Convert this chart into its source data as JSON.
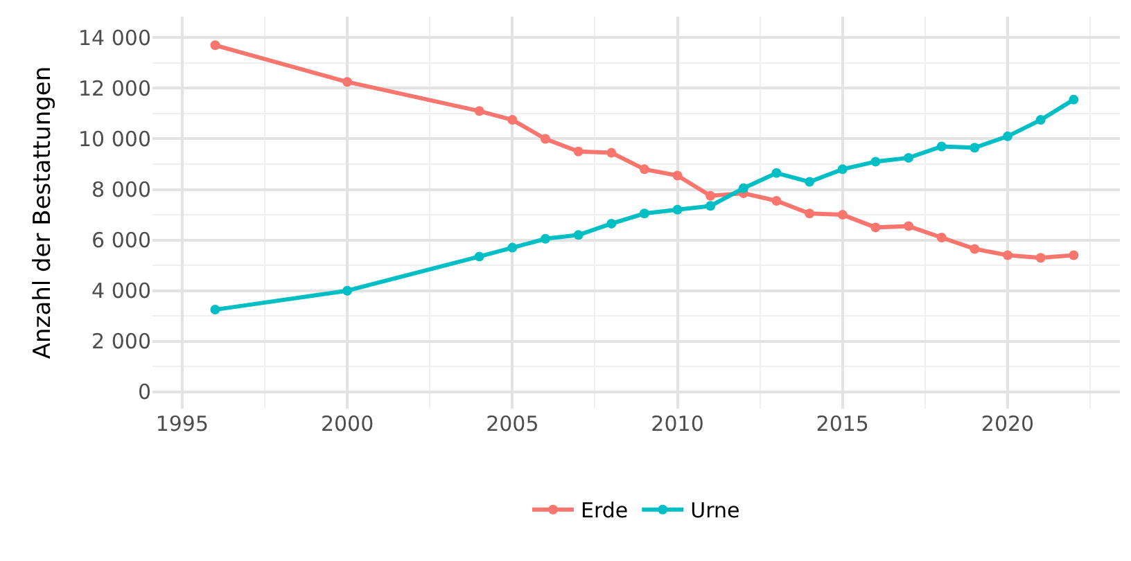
{
  "chart_data": {
    "type": "line",
    "ylabel": "Anzahl der Bestattungen",
    "x": [
      1996,
      2000,
      2004,
      2005,
      2006,
      2007,
      2008,
      2009,
      2010,
      2011,
      2012,
      2013,
      2014,
      2015,
      2016,
      2017,
      2018,
      2019,
      2020,
      2021,
      2022
    ],
    "series": [
      {
        "name": "Erde",
        "color": "#f8766d",
        "values": [
          13700,
          12250,
          11100,
          10750,
          10000,
          9500,
          9450,
          8800,
          8550,
          7750,
          7850,
          7550,
          7050,
          7000,
          6500,
          6550,
          6100,
          5650,
          5400,
          5300,
          5400
        ]
      },
      {
        "name": "Urne",
        "color": "#00bfc4",
        "values": [
          3250,
          4000,
          5350,
          5700,
          6050,
          6200,
          6650,
          7050,
          7200,
          7350,
          8050,
          8650,
          8300,
          8800,
          9100,
          9250,
          9700,
          9650,
          10100,
          10750,
          11550
        ]
      }
    ],
    "xlim": [
      1994.1,
      2023.4
    ],
    "xticks": [
      1995,
      2000,
      2005,
      2010,
      2015,
      2020
    ],
    "ylim": [
      -660,
      14830
    ],
    "yticks": [
      {
        "value": 0,
        "label": "0"
      },
      {
        "value": 2000,
        "label": "2 000"
      },
      {
        "value": 4000,
        "label": "4 000"
      },
      {
        "value": 6000,
        "label": "6 000"
      },
      {
        "value": 8000,
        "label": "8 000"
      },
      {
        "value": 10000,
        "label": "10 000"
      },
      {
        "value": 12000,
        "label": "12 000"
      },
      {
        "value": 14000,
        "label": "14 000"
      }
    ],
    "grid": true,
    "legend": "bottom",
    "marker": "circle",
    "line_style": "solid"
  }
}
